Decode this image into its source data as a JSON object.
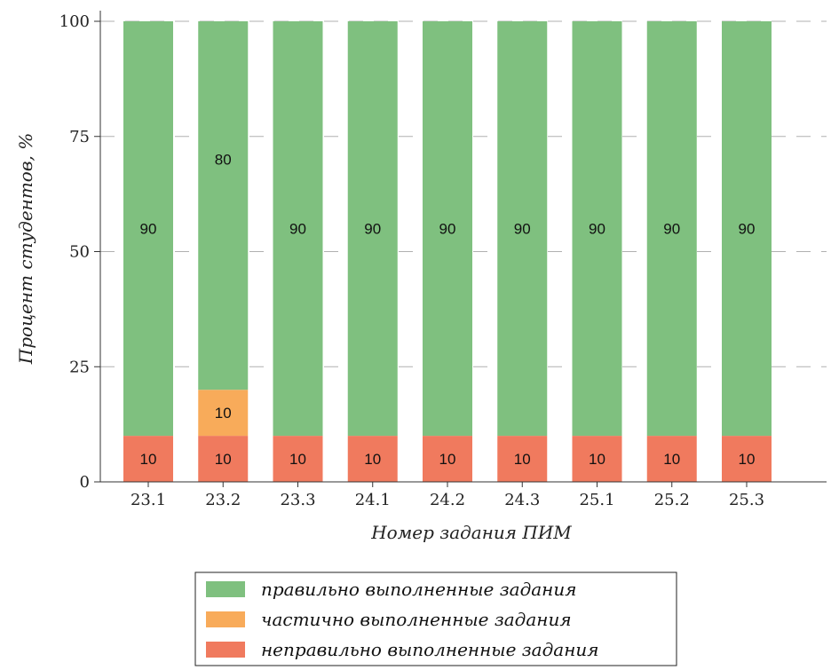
{
  "chart_data": {
    "type": "bar",
    "stacked": true,
    "categories": [
      "23.1",
      "23.2",
      "23.3",
      "24.1",
      "24.2",
      "24.3",
      "25.1",
      "25.2",
      "25.3"
    ],
    "series": [
      {
        "name": "неправильно выполненные задания",
        "color": "#f07a5e",
        "values": [
          10,
          10,
          10,
          10,
          10,
          10,
          10,
          10,
          10
        ],
        "labels": [
          "10",
          "10",
          "10",
          "10",
          "10",
          "10",
          "10",
          "10",
          "10"
        ]
      },
      {
        "name": "частично выполненные задания",
        "color": "#f8ab5a",
        "values": [
          0,
          10,
          0,
          0,
          0,
          0,
          0,
          0,
          0
        ],
        "labels": [
          "",
          "10",
          "",
          "",
          "",
          "",
          "",
          "",
          ""
        ]
      },
      {
        "name": "правильно выполненные задания",
        "color": "#7fc07f",
        "values": [
          90,
          80,
          90,
          90,
          90,
          90,
          90,
          90,
          90
        ],
        "labels": [
          "90",
          "80",
          "90",
          "90",
          "90",
          "90",
          "90",
          "90",
          "90"
        ]
      }
    ],
    "xlabel": "Номер задания ПИМ",
    "ylabel": "Процент студентов, %",
    "ylim": [
      0,
      100
    ],
    "yticks": [
      0,
      25,
      50,
      75,
      100
    ],
    "grid": "horizontal dashed",
    "legend": {
      "placement": "bottom-center",
      "entries": [
        "правильно выполненные задания",
        "частично выполненные задания",
        "неправильно выполненные задания"
      ]
    }
  }
}
